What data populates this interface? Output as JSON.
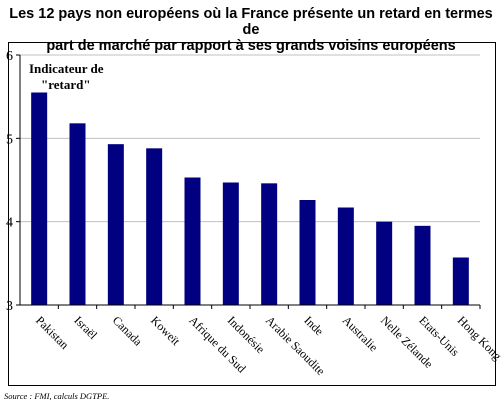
{
  "title_line1": "Les 12 pays non européens où la France présente un retard en termes de",
  "title_line2": "part de marché par rapport à ses grands voisins européens",
  "source": "Source : FMI, calculs DGTPE.",
  "chart_data": {
    "type": "bar",
    "title": "Les 12 pays non européens où la France présente un retard en termes de part de marché par rapport à ses grands voisins européens",
    "annotation_line1": "Indicateur de",
    "annotation_line2": "\"retard\"",
    "categories": [
      "Pakistan",
      "Israël",
      "Canada",
      "Koweït",
      "Afrique du Sud",
      "Indonésie",
      "Arabie Saoudite",
      "Inde",
      "Australie",
      "Nelle Zélande",
      "Etats-Unis",
      "Hong Kong"
    ],
    "values": [
      5.55,
      5.18,
      4.93,
      4.88,
      4.53,
      4.47,
      4.46,
      4.26,
      4.17,
      4.0,
      3.95,
      3.57
    ],
    "yticks": [
      "3",
      "4",
      "5",
      "6"
    ],
    "ylim": [
      3,
      6
    ],
    "grid": true,
    "bar_color": "#000080"
  }
}
